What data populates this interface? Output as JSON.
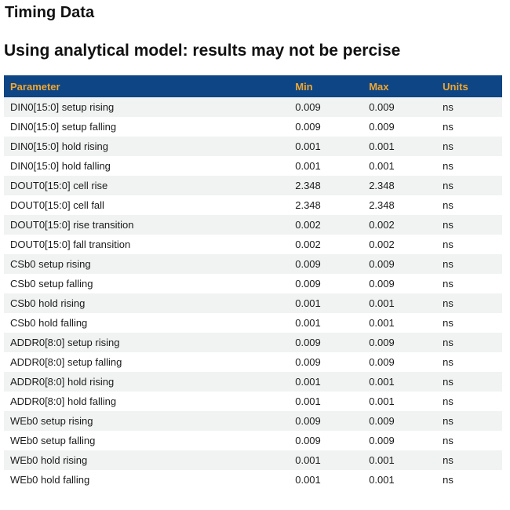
{
  "page": {
    "title": "Timing Data",
    "subtitle": "Using analytical model: results may not be percise"
  },
  "colors": {
    "header_bg": "#0e4584",
    "header_text": "#f0a72f",
    "row_stripe_bg": "#f1f2f2",
    "body_text": "#1b1b1b"
  },
  "table": {
    "columns": [
      "Parameter",
      "Min",
      "Max",
      "Units"
    ],
    "rows": [
      {
        "parameter": "DIN0[15:0] setup rising",
        "min": "0.009",
        "max": "0.009",
        "units": "ns"
      },
      {
        "parameter": "DIN0[15:0] setup falling",
        "min": "0.009",
        "max": "0.009",
        "units": "ns"
      },
      {
        "parameter": "DIN0[15:0] hold rising",
        "min": "0.001",
        "max": "0.001",
        "units": "ns"
      },
      {
        "parameter": "DIN0[15:0] hold falling",
        "min": "0.001",
        "max": "0.001",
        "units": "ns"
      },
      {
        "parameter": "DOUT0[15:0] cell rise",
        "min": "2.348",
        "max": "2.348",
        "units": "ns"
      },
      {
        "parameter": "DOUT0[15:0] cell fall",
        "min": "2.348",
        "max": "2.348",
        "units": "ns"
      },
      {
        "parameter": "DOUT0[15:0] rise transition",
        "min": "0.002",
        "max": "0.002",
        "units": "ns"
      },
      {
        "parameter": "DOUT0[15:0] fall transition",
        "min": "0.002",
        "max": "0.002",
        "units": "ns"
      },
      {
        "parameter": "CSb0 setup rising",
        "min": "0.009",
        "max": "0.009",
        "units": "ns"
      },
      {
        "parameter": "CSb0 setup falling",
        "min": "0.009",
        "max": "0.009",
        "units": "ns"
      },
      {
        "parameter": "CSb0 hold rising",
        "min": "0.001",
        "max": "0.001",
        "units": "ns"
      },
      {
        "parameter": "CSb0 hold falling",
        "min": "0.001",
        "max": "0.001",
        "units": "ns"
      },
      {
        "parameter": "ADDR0[8:0] setup rising",
        "min": "0.009",
        "max": "0.009",
        "units": "ns"
      },
      {
        "parameter": "ADDR0[8:0] setup falling",
        "min": "0.009",
        "max": "0.009",
        "units": "ns"
      },
      {
        "parameter": "ADDR0[8:0] hold rising",
        "min": "0.001",
        "max": "0.001",
        "units": "ns"
      },
      {
        "parameter": "ADDR0[8:0] hold falling",
        "min": "0.001",
        "max": "0.001",
        "units": "ns"
      },
      {
        "parameter": "WEb0 setup rising",
        "min": "0.009",
        "max": "0.009",
        "units": "ns"
      },
      {
        "parameter": "WEb0 setup falling",
        "min": "0.009",
        "max": "0.009",
        "units": "ns"
      },
      {
        "parameter": "WEb0 hold rising",
        "min": "0.001",
        "max": "0.001",
        "units": "ns"
      },
      {
        "parameter": "WEb0 hold falling",
        "min": "0.001",
        "max": "0.001",
        "units": "ns"
      }
    ]
  }
}
